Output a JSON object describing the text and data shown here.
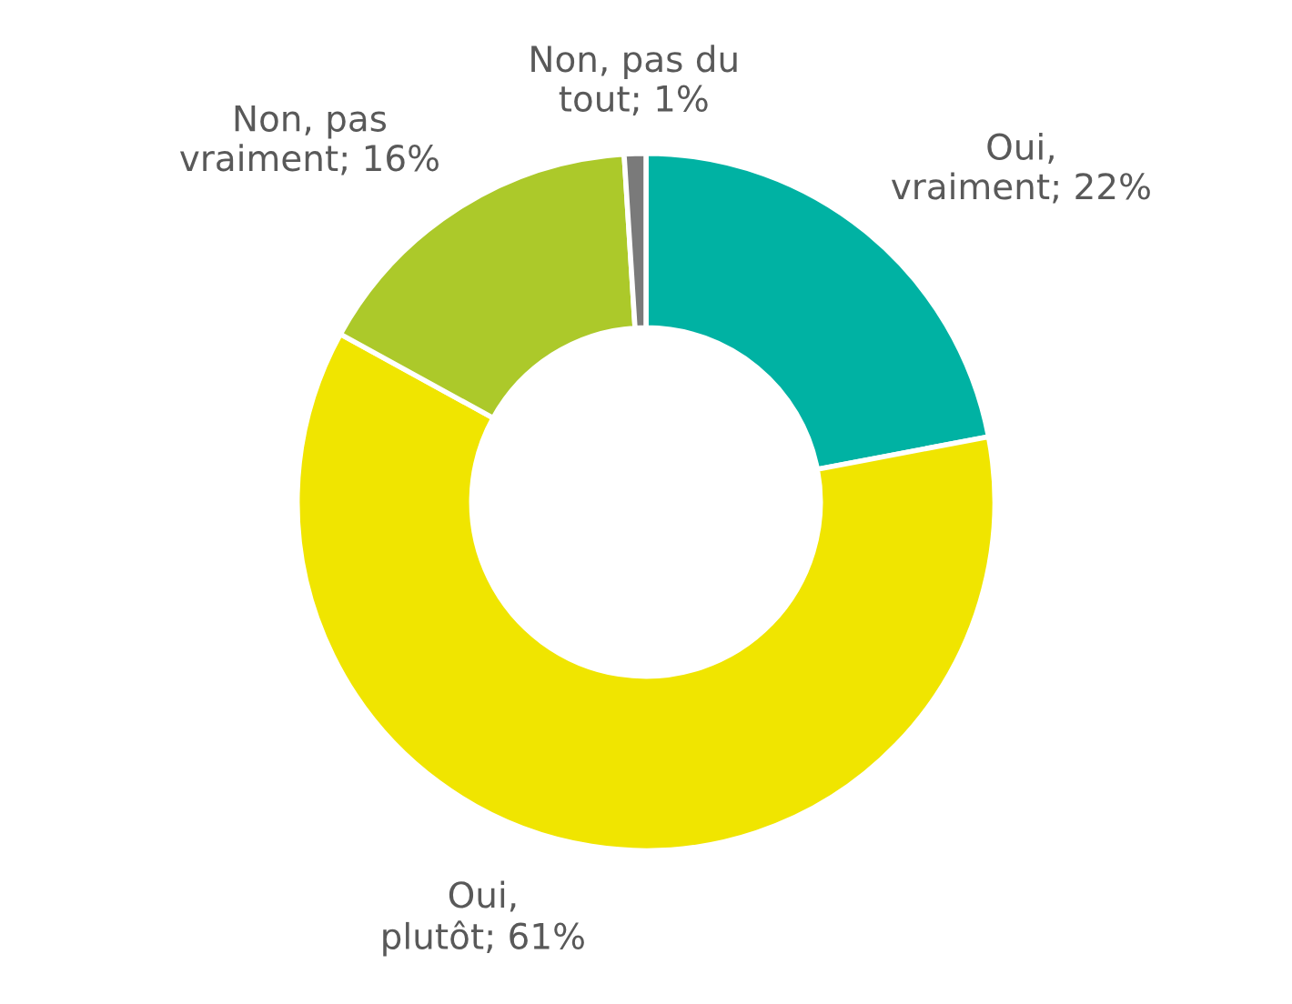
{
  "chart_data": {
    "type": "donut",
    "categories": [
      "Oui, vraiment",
      "Oui, plutôt",
      "Non, pas vraiment",
      "Non, pas du tout"
    ],
    "values": [
      22,
      61,
      16,
      1
    ],
    "value_labels": [
      "22%",
      "61%",
      "16%",
      "1%"
    ],
    "colors": [
      "#00b2a3",
      "#f0e500",
      "#acc92a",
      "#7a7a7a"
    ],
    "legend": false
  }
}
